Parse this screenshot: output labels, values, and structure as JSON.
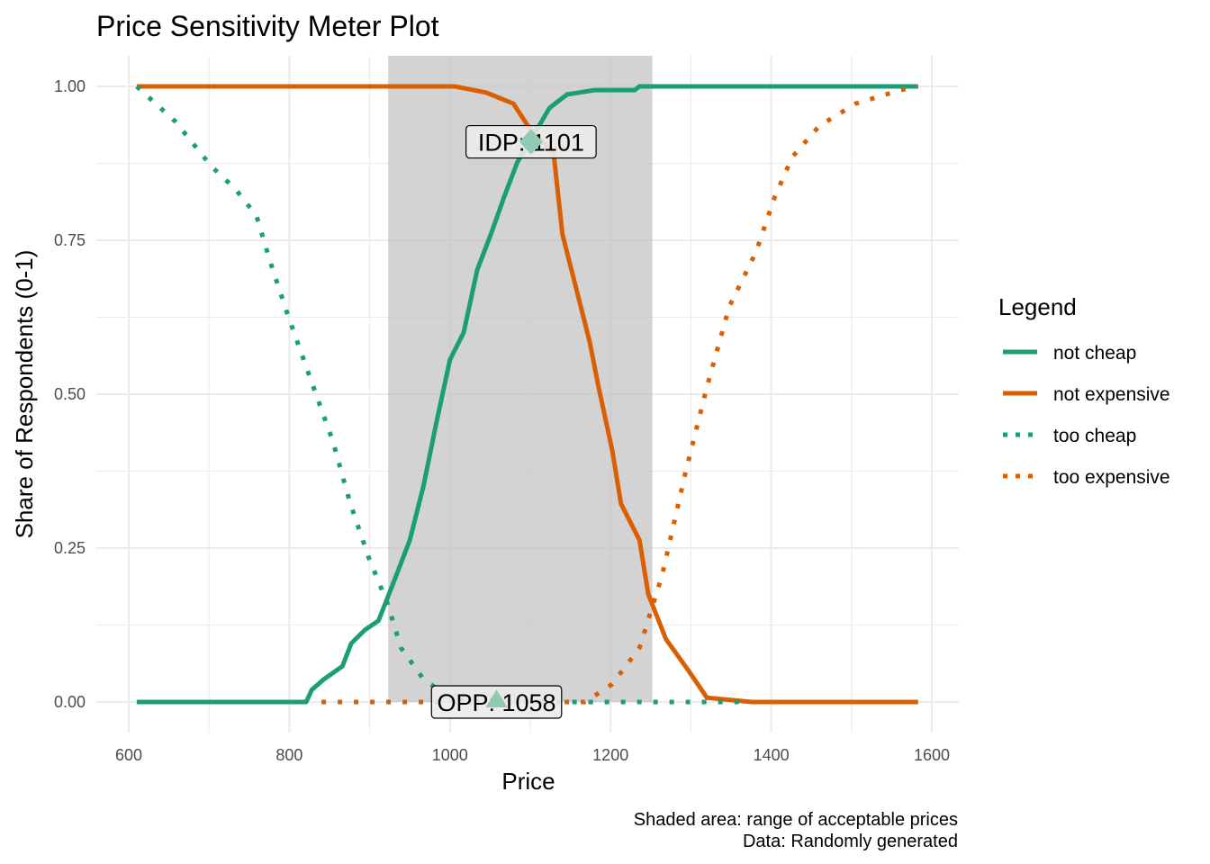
{
  "chart_data": {
    "type": "line",
    "title": "Price Sensitivity Meter Plot",
    "xlabel": "Price",
    "ylabel": "Share of Respondents (0-1)",
    "xlim": [
      585,
      1615
    ],
    "ylim": [
      -0.05,
      1.05
    ],
    "xticks": [
      600,
      800,
      1000,
      1200,
      1400,
      1600
    ],
    "yticks": [
      0,
      0.25,
      0.5,
      0.75,
      1.0
    ],
    "ytick_labels": [
      "0.00",
      "0.25",
      "0.50",
      "0.75",
      "1.00"
    ],
    "grid": true,
    "legend_title": "Legend",
    "legend_position": "right",
    "shaded_range": [
      923,
      1252
    ],
    "series": [
      {
        "name": "not cheap",
        "color": "#1b9e77",
        "style": "solid",
        "points": [
          [
            610,
            0
          ],
          [
            821,
            0
          ],
          [
            828,
            0.02
          ],
          [
            843,
            0.037
          ],
          [
            866,
            0.058
          ],
          [
            877,
            0.095
          ],
          [
            894,
            0.117
          ],
          [
            911,
            0.132
          ],
          [
            933,
            0.205
          ],
          [
            950,
            0.263
          ],
          [
            967,
            0.351
          ],
          [
            983,
            0.453
          ],
          [
            1000,
            0.556
          ],
          [
            1017,
            0.6
          ],
          [
            1034,
            0.702
          ],
          [
            1051,
            0.76
          ],
          [
            1067,
            0.819
          ],
          [
            1084,
            0.877
          ],
          [
            1101,
            0.914
          ],
          [
            1124,
            0.965
          ],
          [
            1146,
            0.987
          ],
          [
            1180,
            0.994
          ],
          [
            1230,
            0.994
          ],
          [
            1236,
            1
          ],
          [
            1583,
            1
          ]
        ]
      },
      {
        "name": "not expensive",
        "color": "#d95f02",
        "style": "solid",
        "points": [
          [
            610,
            1
          ],
          [
            1006,
            1
          ],
          [
            1045,
            0.99
          ],
          [
            1079,
            0.972
          ],
          [
            1101,
            0.928
          ],
          [
            1129,
            0.892
          ],
          [
            1140,
            0.76
          ],
          [
            1157,
            0.673
          ],
          [
            1174,
            0.585
          ],
          [
            1185,
            0.512
          ],
          [
            1202,
            0.409
          ],
          [
            1213,
            0.322
          ],
          [
            1236,
            0.263
          ],
          [
            1247,
            0.175
          ],
          [
            1269,
            0.102
          ],
          [
            1297,
            0.051
          ],
          [
            1320,
            0.007
          ],
          [
            1376,
            0
          ],
          [
            1583,
            0
          ]
        ]
      },
      {
        "name": "too cheap",
        "color": "#1b9e77",
        "style": "dotted",
        "points": [
          [
            610,
            1
          ],
          [
            658,
            0.943
          ],
          [
            703,
            0.87
          ],
          [
            733,
            0.833
          ],
          [
            759,
            0.79
          ],
          [
            776,
            0.716
          ],
          [
            798,
            0.629
          ],
          [
            826,
            0.526
          ],
          [
            854,
            0.424
          ],
          [
            876,
            0.322
          ],
          [
            899,
            0.234
          ],
          [
            922,
            0.161
          ],
          [
            939,
            0.088
          ],
          [
            967,
            0.037
          ],
          [
            1000,
            0.007
          ],
          [
            1023,
            0
          ],
          [
            1370,
            0
          ]
        ]
      },
      {
        "name": "too expensive",
        "color": "#d95f02",
        "style": "dotted",
        "points": [
          [
            840,
            0
          ],
          [
            1168,
            0
          ],
          [
            1202,
            0.029
          ],
          [
            1236,
            0.088
          ],
          [
            1264,
            0.205
          ],
          [
            1292,
            0.366
          ],
          [
            1320,
            0.512
          ],
          [
            1348,
            0.643
          ],
          [
            1381,
            0.731
          ],
          [
            1404,
            0.819
          ],
          [
            1426,
            0.885
          ],
          [
            1460,
            0.936
          ],
          [
            1505,
            0.972
          ],
          [
            1561,
            0.994
          ],
          [
            1583,
            1
          ]
        ]
      }
    ],
    "annotations": [
      {
        "label": "IDP: 1101",
        "x": 1101,
        "y": 0.91,
        "marker": "diamond"
      },
      {
        "label": "OPP: 1058",
        "x": 1058,
        "y": 0,
        "marker": "triangle"
      }
    ],
    "caption": [
      "Shaded area: range of acceptable prices",
      "Data: Randomly generated"
    ]
  }
}
